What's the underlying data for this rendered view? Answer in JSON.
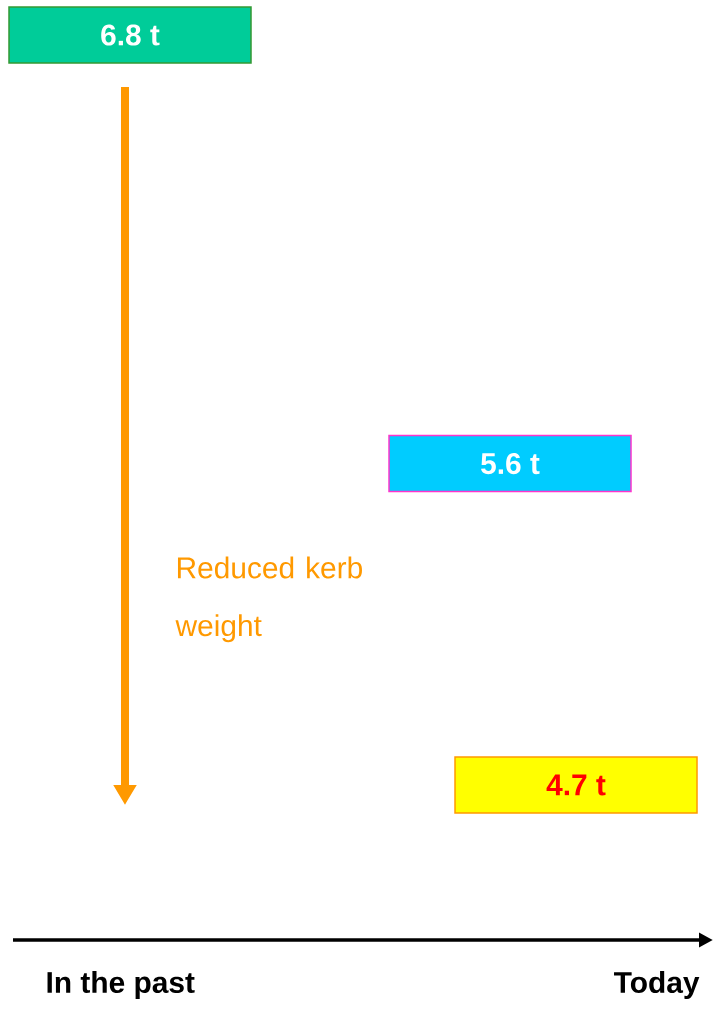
{
  "chart_data": {
    "type": "other",
    "categories": [
      null,
      null,
      null
    ],
    "values": [
      6.8,
      5.6,
      4.7
    ],
    "value_labels": [
      "6.8 t",
      "5.6 t",
      "4.7 t"
    ],
    "colors": [
      "#00cc99",
      "#00ccff",
      "#ffff00"
    ],
    "annotations": [
      "Reduced kerb weight",
      "In the past",
      "Today"
    ]
  }
}
